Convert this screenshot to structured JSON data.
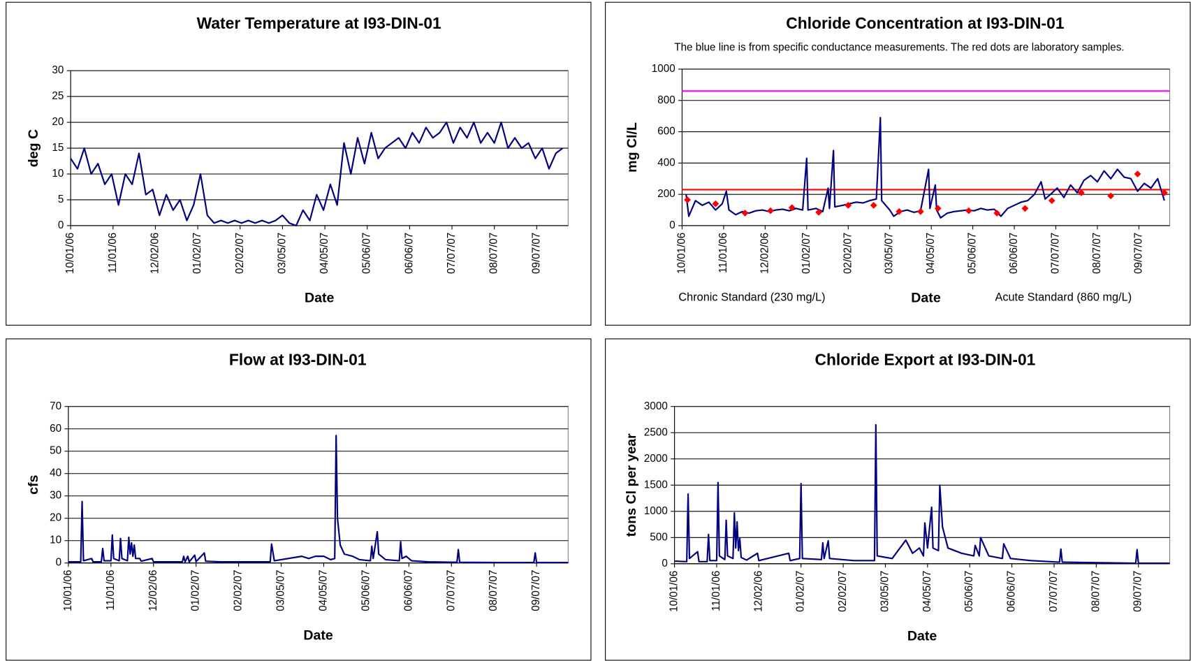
{
  "chart_data": [
    {
      "type": "line",
      "title": "Water Temperature at I93-DIN-01",
      "x_label": "Date",
      "y_label": "deg C",
      "color": "#000080",
      "x": [
        "2006-10-01",
        "2006-10-06",
        "2006-10-11",
        "2006-10-16",
        "2006-10-21",
        "2006-10-26",
        "2006-10-31",
        "2006-11-05",
        "2006-11-10",
        "2006-11-15",
        "2006-11-20",
        "2006-11-25",
        "2006-11-30",
        "2006-12-05",
        "2006-12-10",
        "2006-12-15",
        "2006-12-20",
        "2006-12-25",
        "2006-12-30",
        "2007-01-04",
        "2007-01-09",
        "2007-01-14",
        "2007-01-19",
        "2007-01-24",
        "2007-01-29",
        "2007-02-03",
        "2007-02-08",
        "2007-02-13",
        "2007-02-18",
        "2007-02-23",
        "2007-02-28",
        "2007-03-05",
        "2007-03-10",
        "2007-03-15",
        "2007-03-20",
        "2007-03-25",
        "2007-03-30",
        "2007-04-04",
        "2007-04-09",
        "2007-04-14",
        "2007-04-19",
        "2007-04-24",
        "2007-04-29",
        "2007-05-04",
        "2007-05-09",
        "2007-05-14",
        "2007-05-19",
        "2007-05-24",
        "2007-05-29",
        "2007-06-03",
        "2007-06-08",
        "2007-06-13",
        "2007-06-18",
        "2007-06-23",
        "2007-06-28",
        "2007-07-03",
        "2007-07-08",
        "2007-07-13",
        "2007-07-18",
        "2007-07-23",
        "2007-07-28",
        "2007-08-02",
        "2007-08-07",
        "2007-08-12",
        "2007-08-17",
        "2007-08-22",
        "2007-08-27",
        "2007-09-01",
        "2007-09-06",
        "2007-09-11",
        "2007-09-16",
        "2007-09-21",
        "2007-09-26"
      ],
      "values": [
        13,
        11,
        15,
        10,
        12,
        8,
        10,
        4,
        10,
        8,
        14,
        6,
        7,
        2,
        6,
        3,
        5,
        1,
        4,
        10,
        2,
        0.5,
        1,
        0.5,
        1,
        0.5,
        1,
        0.5,
        1,
        0.5,
        1,
        2,
        0.5,
        0,
        3,
        1,
        6,
        3,
        8,
        4,
        16,
        10,
        17,
        12,
        18,
        13,
        15,
        16,
        17,
        15,
        18,
        16,
        19,
        17,
        18,
        20,
        16,
        19,
        17,
        20,
        16,
        18,
        16,
        20,
        15,
        17,
        15,
        16,
        13,
        15,
        11,
        14,
        15
      ],
      "xlim": [
        "2006-10-01",
        "2007-09-30"
      ],
      "xticks": [
        {
          "value": "2006-10-01",
          "label": "10/01/06"
        },
        {
          "value": "2006-11-01",
          "label": "11/01/06"
        },
        {
          "value": "2006-12-02",
          "label": "12/02/06"
        },
        {
          "value": "2007-01-02",
          "label": "01/02/07"
        },
        {
          "value": "2007-02-02",
          "label": "02/02/07"
        },
        {
          "value": "2007-03-05",
          "label": "03/05/07"
        },
        {
          "value": "2007-04-05",
          "label": "04/05/07"
        },
        {
          "value": "2007-05-06",
          "label": "05/06/07"
        },
        {
          "value": "2007-06-06",
          "label": "06/06/07"
        },
        {
          "value": "2007-07-07",
          "label": "07/07/07"
        },
        {
          "value": "2007-08-07",
          "label": "08/07/07"
        },
        {
          "value": "2007-09-07",
          "label": "09/07/07"
        }
      ],
      "ylim": [
        0,
        30
      ],
      "yticks": [
        0,
        5,
        10,
        15,
        20,
        25,
        30
      ],
      "grid": true
    },
    {
      "type": "line",
      "title": "Chloride Concentration at I93-DIN-01",
      "subtitle": "The blue line is from specific conductance measurements. The red dots are laboratory samples.",
      "x_label": "Date",
      "y_label": "mg Cl/L",
      "color": "#000080",
      "x": [
        "2006-10-04",
        "2006-10-06",
        "2006-10-11",
        "2006-10-16",
        "2006-10-21",
        "2006-10-26",
        "2006-10-31",
        "2006-11-03",
        "2006-11-05",
        "2006-11-10",
        "2006-11-15",
        "2006-11-20",
        "2006-11-25",
        "2006-11-30",
        "2006-12-05",
        "2006-12-10",
        "2006-12-15",
        "2006-12-20",
        "2006-12-25",
        "2006-12-30",
        "2007-01-02",
        "2007-01-03",
        "2007-01-09",
        "2007-01-14",
        "2007-01-18",
        "2007-01-19",
        "2007-01-22",
        "2007-01-23",
        "2007-01-29",
        "2007-02-03",
        "2007-02-08",
        "2007-02-13",
        "2007-02-18",
        "2007-02-23",
        "2007-02-26",
        "2007-02-27",
        "2007-03-05",
        "2007-03-08",
        "2007-03-13",
        "2007-03-18",
        "2007-03-23",
        "2007-03-28",
        "2007-04-03",
        "2007-04-04",
        "2007-04-08",
        "2007-04-09",
        "2007-04-12",
        "2007-04-17",
        "2007-04-22",
        "2007-04-27",
        "2007-05-02",
        "2007-05-07",
        "2007-05-12",
        "2007-05-17",
        "2007-05-22",
        "2007-05-27",
        "2007-06-01",
        "2007-06-06",
        "2007-06-11",
        "2007-06-16",
        "2007-06-21",
        "2007-06-26",
        "2007-06-29",
        "2007-07-03",
        "2007-07-08",
        "2007-07-13",
        "2007-07-18",
        "2007-07-23",
        "2007-07-28",
        "2007-08-02",
        "2007-08-07",
        "2007-08-12",
        "2007-08-17",
        "2007-08-22",
        "2007-08-27",
        "2007-09-01",
        "2007-09-06",
        "2007-09-11",
        "2007-09-16",
        "2007-09-21",
        "2007-09-26"
      ],
      "values": [
        200,
        60,
        160,
        130,
        150,
        100,
        140,
        220,
        100,
        70,
        90,
        80,
        95,
        100,
        90,
        100,
        105,
        95,
        110,
        100,
        430,
        100,
        110,
        90,
        240,
        110,
        480,
        120,
        130,
        140,
        150,
        145,
        160,
        170,
        690,
        160,
        100,
        60,
        90,
        100,
        85,
        95,
        360,
        110,
        260,
        100,
        50,
        80,
        90,
        95,
        100,
        95,
        110,
        100,
        105,
        60,
        110,
        130,
        150,
        160,
        200,
        280,
        170,
        200,
        240,
        180,
        260,
        210,
        290,
        320,
        280,
        350,
        300,
        360,
        310,
        300,
        220,
        270,
        240,
        300,
        160
      ],
      "samples": {
        "color": "#ff0000",
        "x": [
          "2006-10-05",
          "2006-10-26",
          "2006-11-17",
          "2006-12-06",
          "2006-12-22",
          "2007-01-11",
          "2007-02-02",
          "2007-02-21",
          "2007-03-12",
          "2007-03-28",
          "2007-04-10",
          "2007-05-03",
          "2007-05-24",
          "2007-06-14",
          "2007-07-04",
          "2007-07-26",
          "2007-08-17",
          "2007-09-06",
          "2007-09-26"
        ],
        "values": [
          165,
          140,
          80,
          95,
          115,
          85,
          130,
          130,
          90,
          90,
          110,
          95,
          80,
          110,
          160,
          210,
          190,
          330,
          210
        ]
      },
      "reference_lines": [
        {
          "label": "Chronic Standard (230 mg/L)",
          "value": 230,
          "color": "#ff0000"
        },
        {
          "label": "Acute Standard (860 mg/L)",
          "value": 860,
          "color": "#ff00ff"
        }
      ],
      "xlim": [
        "2006-10-01",
        "2007-09-30"
      ],
      "xticks": [
        {
          "value": "2006-10-01",
          "label": "10/01/06"
        },
        {
          "value": "2006-11-01",
          "label": "11/01/06"
        },
        {
          "value": "2006-12-02",
          "label": "12/02/06"
        },
        {
          "value": "2007-01-02",
          "label": "01/02/07"
        },
        {
          "value": "2007-02-02",
          "label": "02/02/07"
        },
        {
          "value": "2007-03-05",
          "label": "03/05/07"
        },
        {
          "value": "2007-04-05",
          "label": "04/05/07"
        },
        {
          "value": "2007-05-06",
          "label": "05/06/07"
        },
        {
          "value": "2007-06-06",
          "label": "06/06/07"
        },
        {
          "value": "2007-07-07",
          "label": "07/07/07"
        },
        {
          "value": "2007-08-07",
          "label": "08/07/07"
        },
        {
          "value": "2007-09-07",
          "label": "09/07/07"
        }
      ],
      "ylim": [
        0,
        1000
      ],
      "yticks": [
        0,
        200,
        400,
        600,
        800,
        1000
      ],
      "grid": true
    },
    {
      "type": "line",
      "title": "Flow at I93-DIN-01",
      "x_label": "Date",
      "y_label": "cfs",
      "color": "#000080",
      "x": [
        "2006-10-01",
        "2006-10-10",
        "2006-10-11",
        "2006-10-12",
        "2006-10-18",
        "2006-10-19",
        "2006-10-25",
        "2006-10-26",
        "2006-10-27",
        "2006-11-01",
        "2006-11-02",
        "2006-11-03",
        "2006-11-07",
        "2006-11-08",
        "2006-11-09",
        "2006-11-13",
        "2006-11-14",
        "2006-11-15",
        "2006-11-16",
        "2006-11-17",
        "2006-11-18",
        "2006-11-19",
        "2006-11-22",
        "2006-11-23",
        "2006-12-01",
        "2006-12-02",
        "2006-12-23",
        "2006-12-24",
        "2006-12-25",
        "2006-12-27",
        "2006-12-28",
        "2007-01-01",
        "2007-01-02",
        "2007-01-08",
        "2007-01-09",
        "2007-01-20",
        "2007-02-25",
        "2007-02-26",
        "2007-02-28",
        "2007-03-20",
        "2007-03-25",
        "2007-03-30",
        "2007-04-05",
        "2007-04-10",
        "2007-04-13",
        "2007-04-14",
        "2007-04-15",
        "2007-04-17",
        "2007-04-20",
        "2007-04-26",
        "2007-05-01",
        "2007-05-09",
        "2007-05-10",
        "2007-05-11",
        "2007-05-14",
        "2007-05-15",
        "2007-05-20",
        "2007-05-30",
        "2007-05-31",
        "2007-06-01",
        "2007-06-04",
        "2007-06-08",
        "2007-06-20",
        "2007-07-11",
        "2007-07-12",
        "2007-07-13",
        "2007-08-10",
        "2007-09-05",
        "2007-09-06",
        "2007-09-07",
        "2007-09-30"
      ],
      "values": [
        0.5,
        0.5,
        27.5,
        1,
        2,
        0.5,
        0.5,
        6.5,
        1,
        1,
        12.5,
        2,
        1,
        11,
        2,
        1,
        11.5,
        4,
        9,
        3,
        8,
        2,
        2,
        0.8,
        2,
        0.5,
        0.5,
        3,
        0.5,
        3,
        0.5,
        3.5,
        0.6,
        4.5,
        0.8,
        0.5,
        0.5,
        8.5,
        1,
        3,
        2,
        3,
        3,
        1.5,
        2,
        57,
        20,
        8,
        4,
        3,
        1.5,
        1,
        7.5,
        2,
        14,
        4,
        1.5,
        1,
        9.5,
        2,
        3,
        1,
        0.5,
        0.3,
        6,
        0.3,
        0.2,
        0.2,
        4.5,
        0.2,
        0.2
      ],
      "xlim": [
        "2006-10-01",
        "2007-09-30"
      ],
      "xticks": [
        {
          "value": "2006-10-01",
          "label": "10/01/06"
        },
        {
          "value": "2006-11-01",
          "label": "11/01/06"
        },
        {
          "value": "2006-12-02",
          "label": "12/02/06"
        },
        {
          "value": "2007-01-02",
          "label": "01/02/07"
        },
        {
          "value": "2007-02-02",
          "label": "02/02/07"
        },
        {
          "value": "2007-03-05",
          "label": "03/05/07"
        },
        {
          "value": "2007-04-05",
          "label": "04/05/07"
        },
        {
          "value": "2007-05-06",
          "label": "05/06/07"
        },
        {
          "value": "2007-06-06",
          "label": "06/06/07"
        },
        {
          "value": "2007-07-07",
          "label": "07/07/07"
        },
        {
          "value": "2007-08-07",
          "label": "08/07/07"
        },
        {
          "value": "2007-09-07",
          "label": "09/07/07"
        }
      ],
      "ylim": [
        0,
        70
      ],
      "yticks": [
        0,
        10,
        20,
        30,
        40,
        50,
        60,
        70
      ],
      "grid": true
    },
    {
      "type": "line",
      "title": "Chloride Export at I93-DIN-01",
      "x_label": "Date",
      "y_label": "tons Cl per year",
      "color": "#000080",
      "x": [
        "2006-10-01",
        "2006-10-10",
        "2006-10-11",
        "2006-10-12",
        "2006-10-18",
        "2006-10-19",
        "2006-10-25",
        "2006-10-26",
        "2006-10-27",
        "2006-11-01",
        "2006-11-02",
        "2006-11-03",
        "2006-11-07",
        "2006-11-08",
        "2006-11-09",
        "2006-11-13",
        "2006-11-14",
        "2006-11-15",
        "2006-11-16",
        "2006-11-17",
        "2006-11-18",
        "2006-11-19",
        "2006-11-23",
        "2006-12-01",
        "2006-12-02",
        "2006-12-24",
        "2006-12-25",
        "2007-01-01",
        "2007-01-02",
        "2007-01-03",
        "2007-01-17",
        "2007-01-18",
        "2007-01-19",
        "2007-01-22",
        "2007-01-23",
        "2007-02-10",
        "2007-02-25",
        "2007-02-26",
        "2007-02-27",
        "2007-03-10",
        "2007-03-20",
        "2007-03-25",
        "2007-03-30",
        "2007-04-02",
        "2007-04-03",
        "2007-04-05",
        "2007-04-08",
        "2007-04-09",
        "2007-04-13",
        "2007-04-14",
        "2007-04-16",
        "2007-04-20",
        "2007-04-30",
        "2007-05-09",
        "2007-05-10",
        "2007-05-13",
        "2007-05-14",
        "2007-05-20",
        "2007-05-30",
        "2007-05-31",
        "2007-06-05",
        "2007-06-20",
        "2007-07-11",
        "2007-07-12",
        "2007-07-13",
        "2007-08-10",
        "2007-09-05",
        "2007-09-06",
        "2007-09-07",
        "2007-09-30"
      ],
      "values": [
        50,
        40,
        1330,
        100,
        230,
        40,
        40,
        560,
        60,
        60,
        1550,
        150,
        80,
        830,
        150,
        100,
        970,
        300,
        800,
        250,
        480,
        120,
        70,
        200,
        60,
        200,
        60,
        100,
        1530,
        100,
        80,
        400,
        100,
        440,
        100,
        60,
        60,
        2650,
        150,
        100,
        450,
        200,
        300,
        150,
        780,
        300,
        1080,
        300,
        250,
        1500,
        700,
        300,
        200,
        150,
        350,
        150,
        500,
        150,
        100,
        380,
        100,
        60,
        30,
        280,
        30,
        20,
        10,
        270,
        10,
        10
      ],
      "xlim": [
        "2006-10-01",
        "2007-09-30"
      ],
      "xticks": [
        {
          "value": "2006-10-01",
          "label": "10/01/06"
        },
        {
          "value": "2006-11-01",
          "label": "11/01/06"
        },
        {
          "value": "2006-12-02",
          "label": "12/02/06"
        },
        {
          "value": "2007-01-02",
          "label": "01/02/07"
        },
        {
          "value": "2007-02-02",
          "label": "02/02/07"
        },
        {
          "value": "2007-03-05",
          "label": "03/05/07"
        },
        {
          "value": "2007-04-05",
          "label": "04/05/07"
        },
        {
          "value": "2007-05-06",
          "label": "05/06/07"
        },
        {
          "value": "2007-06-06",
          "label": "06/06/07"
        },
        {
          "value": "2007-07-07",
          "label": "07/07/07"
        },
        {
          "value": "2007-08-07",
          "label": "08/07/07"
        },
        {
          "value": "2007-09-07",
          "label": "09/07/07"
        }
      ],
      "ylim": [
        0,
        3000
      ],
      "yticks": [
        0,
        500,
        1000,
        1500,
        2000,
        2500,
        3000
      ],
      "grid": true
    }
  ]
}
